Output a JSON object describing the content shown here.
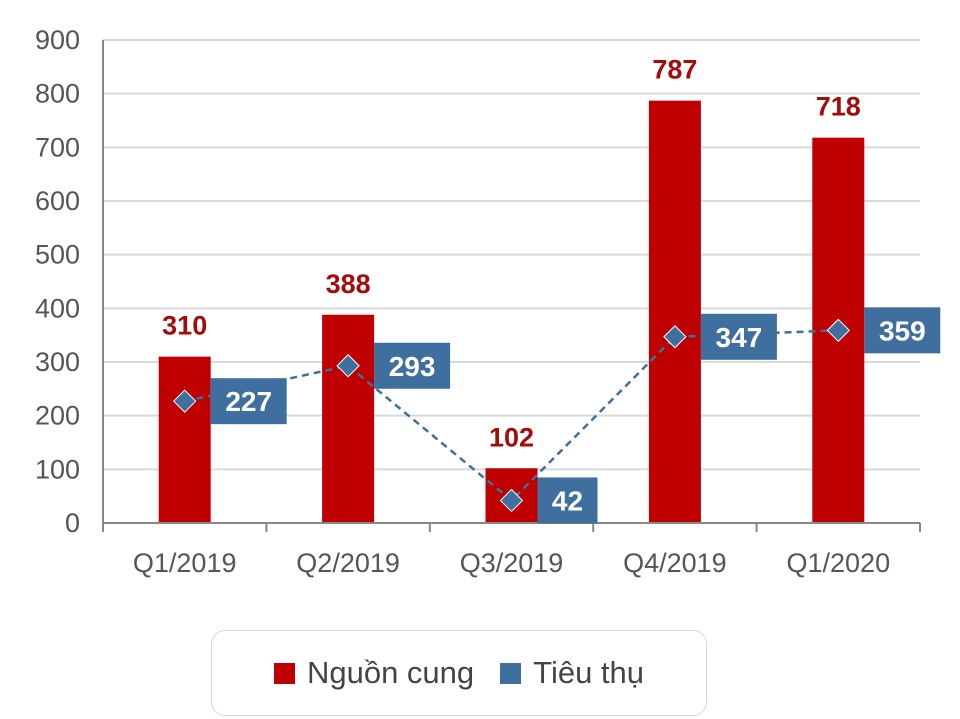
{
  "chart_data": {
    "type": "bar",
    "categories": [
      "Q1/2019",
      "Q2/2019",
      "Q3/2019",
      "Q4/2019",
      "Q1/2020"
    ],
    "ylim": [
      0,
      900
    ],
    "yticks": [
      0,
      100,
      200,
      300,
      400,
      500,
      600,
      700,
      800,
      900
    ],
    "grid": true,
    "legend_position": "bottom",
    "series": [
      {
        "name": "Nguồn cung",
        "kind": "bar",
        "color": "#c00000",
        "label_color": "#a50b0b",
        "values": [
          310,
          388,
          102,
          787,
          718
        ]
      },
      {
        "name": "Tiêu thụ",
        "kind": "line",
        "line_style": "dashed",
        "marker": "diamond",
        "color": "#3f6f9e",
        "values": [
          227,
          293,
          42,
          347,
          359
        ]
      }
    ]
  }
}
